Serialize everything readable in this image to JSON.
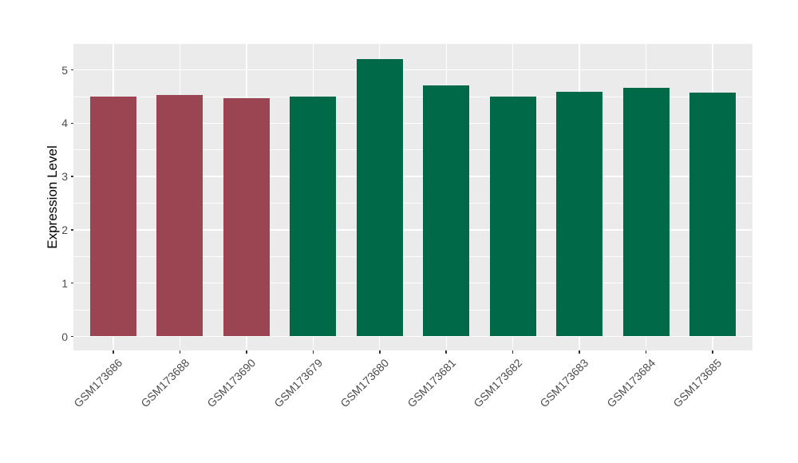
{
  "chart_data": {
    "type": "bar",
    "title": "",
    "xlabel": "",
    "ylabel": "Expression Level",
    "categories": [
      "GSM173686",
      "GSM173688",
      "GSM173690",
      "GSM173679",
      "GSM173680",
      "GSM173681",
      "GSM173682",
      "GSM173683",
      "GSM173684",
      "GSM173685"
    ],
    "values": [
      4.5,
      4.53,
      4.47,
      4.5,
      5.2,
      4.71,
      4.5,
      4.59,
      4.67,
      4.57
    ],
    "bar_colors": [
      "#9B4452",
      "#9B4452",
      "#9B4452",
      "#006A48",
      "#006A48",
      "#006A48",
      "#006A48",
      "#006A48",
      "#006A48",
      "#006A48"
    ],
    "color_groups": [
      {
        "color": "#9B4452",
        "categories": [
          "GSM173686",
          "GSM173688",
          "GSM173690"
        ]
      },
      {
        "color": "#006A48",
        "categories": [
          "GSM173679",
          "GSM173680",
          "GSM173681",
          "GSM173682",
          "GSM173683",
          "GSM173684",
          "GSM173685"
        ]
      }
    ],
    "yticks": [
      0,
      1,
      2,
      3,
      4,
      5
    ],
    "yticks_minor": [
      0.5,
      1.5,
      2.5,
      3.5,
      4.5
    ],
    "ylim": [
      -0.26,
      5.48
    ],
    "grid": "on",
    "legend": "none",
    "x_label_angle_deg": 45,
    "panel_background": "#EBEBEB",
    "gridline_color": "#FFFFFF",
    "axis_text_color": "#4D4D4D",
    "axis_title_color": "#000000",
    "tick_color": "#333333"
  }
}
